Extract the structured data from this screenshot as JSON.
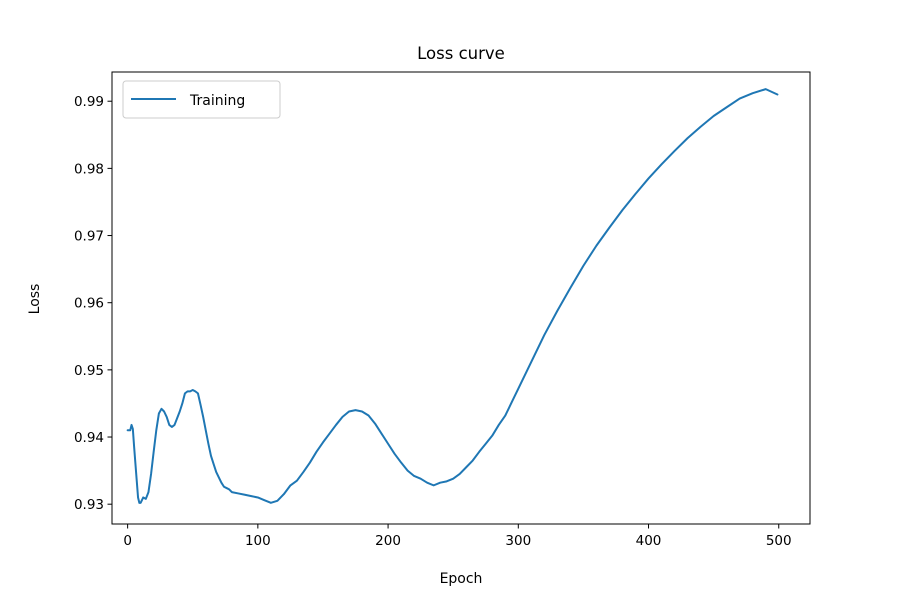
{
  "chart_data": {
    "type": "line",
    "title": "Loss curve",
    "xlabel": "Epoch",
    "ylabel": "Loss",
    "xlim": [
      -12,
      524
    ],
    "ylim": [
      0.92705,
      0.99435
    ],
    "xticks": [
      0,
      100,
      200,
      300,
      400,
      500
    ],
    "yticks": [
      0.93,
      0.94,
      0.95,
      0.96,
      0.97,
      0.98,
      0.99
    ],
    "grid": false,
    "legend_position": "top-left",
    "series": [
      {
        "name": "Training",
        "color": "#1f77b4",
        "x": [
          0,
          2,
          3,
          4,
          5,
          6,
          7,
          8,
          9,
          10,
          12,
          14,
          16,
          18,
          20,
          22,
          24,
          26,
          28,
          30,
          32,
          34,
          36,
          38,
          40,
          42,
          44,
          46,
          48,
          50,
          52,
          54,
          56,
          58,
          60,
          62,
          64,
          66,
          68,
          70,
          72,
          74,
          76,
          78,
          80,
          85,
          90,
          95,
          100,
          105,
          110,
          115,
          120,
          125,
          130,
          135,
          140,
          145,
          150,
          155,
          160,
          165,
          170,
          175,
          180,
          185,
          190,
          195,
          200,
          205,
          210,
          215,
          220,
          225,
          230,
          235,
          240,
          245,
          250,
          255,
          260,
          265,
          270,
          275,
          280,
          285,
          290,
          295,
          300,
          310,
          320,
          330,
          340,
          350,
          360,
          370,
          380,
          390,
          400,
          410,
          420,
          430,
          440,
          450,
          460,
          470,
          480,
          490,
          499
        ],
        "y": [
          0.941,
          0.941,
          0.9418,
          0.9412,
          0.9385,
          0.936,
          0.9335,
          0.931,
          0.9302,
          0.9302,
          0.931,
          0.9308,
          0.9318,
          0.9345,
          0.9378,
          0.941,
          0.9435,
          0.9442,
          0.9438,
          0.943,
          0.9418,
          0.9415,
          0.9418,
          0.9428,
          0.9438,
          0.945,
          0.9465,
          0.9468,
          0.9468,
          0.947,
          0.9468,
          0.9465,
          0.9448,
          0.943,
          0.941,
          0.939,
          0.9372,
          0.936,
          0.9348,
          0.934,
          0.9332,
          0.9326,
          0.9324,
          0.9322,
          0.9318,
          0.9316,
          0.9314,
          0.9312,
          0.931,
          0.9306,
          0.9302,
          0.9305,
          0.9315,
          0.9328,
          0.9335,
          0.9348,
          0.9362,
          0.9378,
          0.9392,
          0.9405,
          0.9418,
          0.943,
          0.9438,
          0.944,
          0.9438,
          0.9432,
          0.942,
          0.9405,
          0.939,
          0.9375,
          0.9362,
          0.935,
          0.9342,
          0.9338,
          0.9332,
          0.9328,
          0.9332,
          0.9334,
          0.9338,
          0.9345,
          0.9355,
          0.9365,
          0.9378,
          0.939,
          0.9402,
          0.9418,
          0.9432,
          0.9452,
          0.9472,
          0.9512,
          0.9552,
          0.9588,
          0.9622,
          0.9655,
          0.9685,
          0.9712,
          0.9738,
          0.9762,
          0.9785,
          0.9806,
          0.9826,
          0.9845,
          0.9862,
          0.9878,
          0.9891,
          0.9904,
          0.9912,
          0.9918,
          0.991
        ]
      }
    ]
  }
}
